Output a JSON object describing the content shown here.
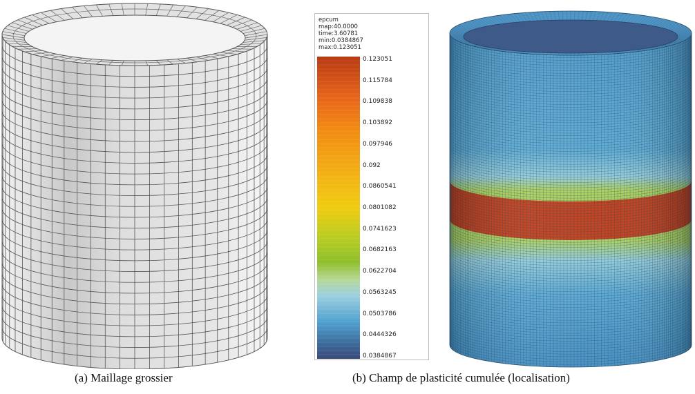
{
  "legend": {
    "field": "epcum",
    "map": "map:40.0000",
    "time": "time:3.60781",
    "min": "min:0.0384867",
    "max": "max:0.123051",
    "ticks": [
      "0.123051",
      "0.115784",
      "0.109838",
      "0.103892",
      "0.097946",
      "0.092",
      "0.0860541",
      "0.0801082",
      "0.0741623",
      "0.0682163",
      "0.0622704",
      "0.0563245",
      "0.0503786",
      "0.0444326",
      "0.0384867"
    ],
    "colors": {
      "top": "#b83a12",
      "orange": "#f28a12",
      "yellow": "#f0cc10",
      "green": "#8fbf2a",
      "light_blue": "#9cd0e0",
      "blue": "#4fa0cf",
      "bottom": "#3a4a7a"
    }
  },
  "captions": {
    "a": "(a) Maillage grossier",
    "b": "(b) Champ de plasticité cumulée (localisation)"
  },
  "figures": {
    "coarse_mesh": {
      "color": "#d8d8d8",
      "edge": "#555555"
    },
    "fine_mesh": {
      "body": "#4d9ccb",
      "band": "#c03a14",
      "band_glow": "#9acb3a",
      "edge": "#1c3c5c"
    }
  }
}
